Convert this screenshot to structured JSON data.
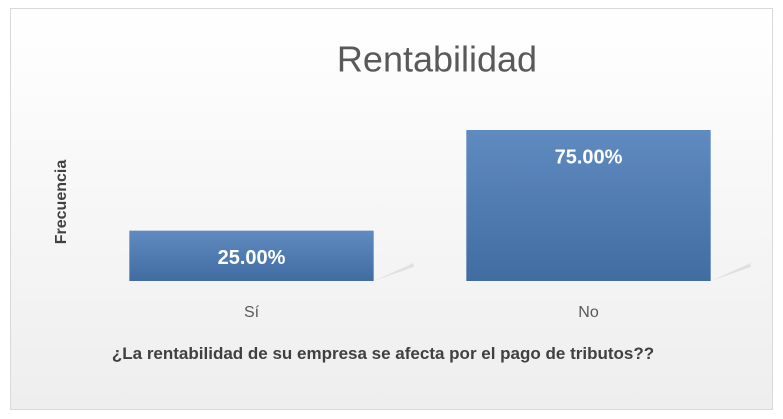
{
  "chart_data": {
    "type": "bar",
    "title": "Rentabilidad",
    "x_label": "¿La rentabilidad de su empresa se afecta por el pago de tributos??",
    "y_label": "Frecuencia",
    "categories": [
      "Sí",
      "No"
    ],
    "values": [
      25,
      75
    ],
    "value_labels": [
      "25.00%",
      "75.00%"
    ],
    "color": "#4a7bb8"
  }
}
